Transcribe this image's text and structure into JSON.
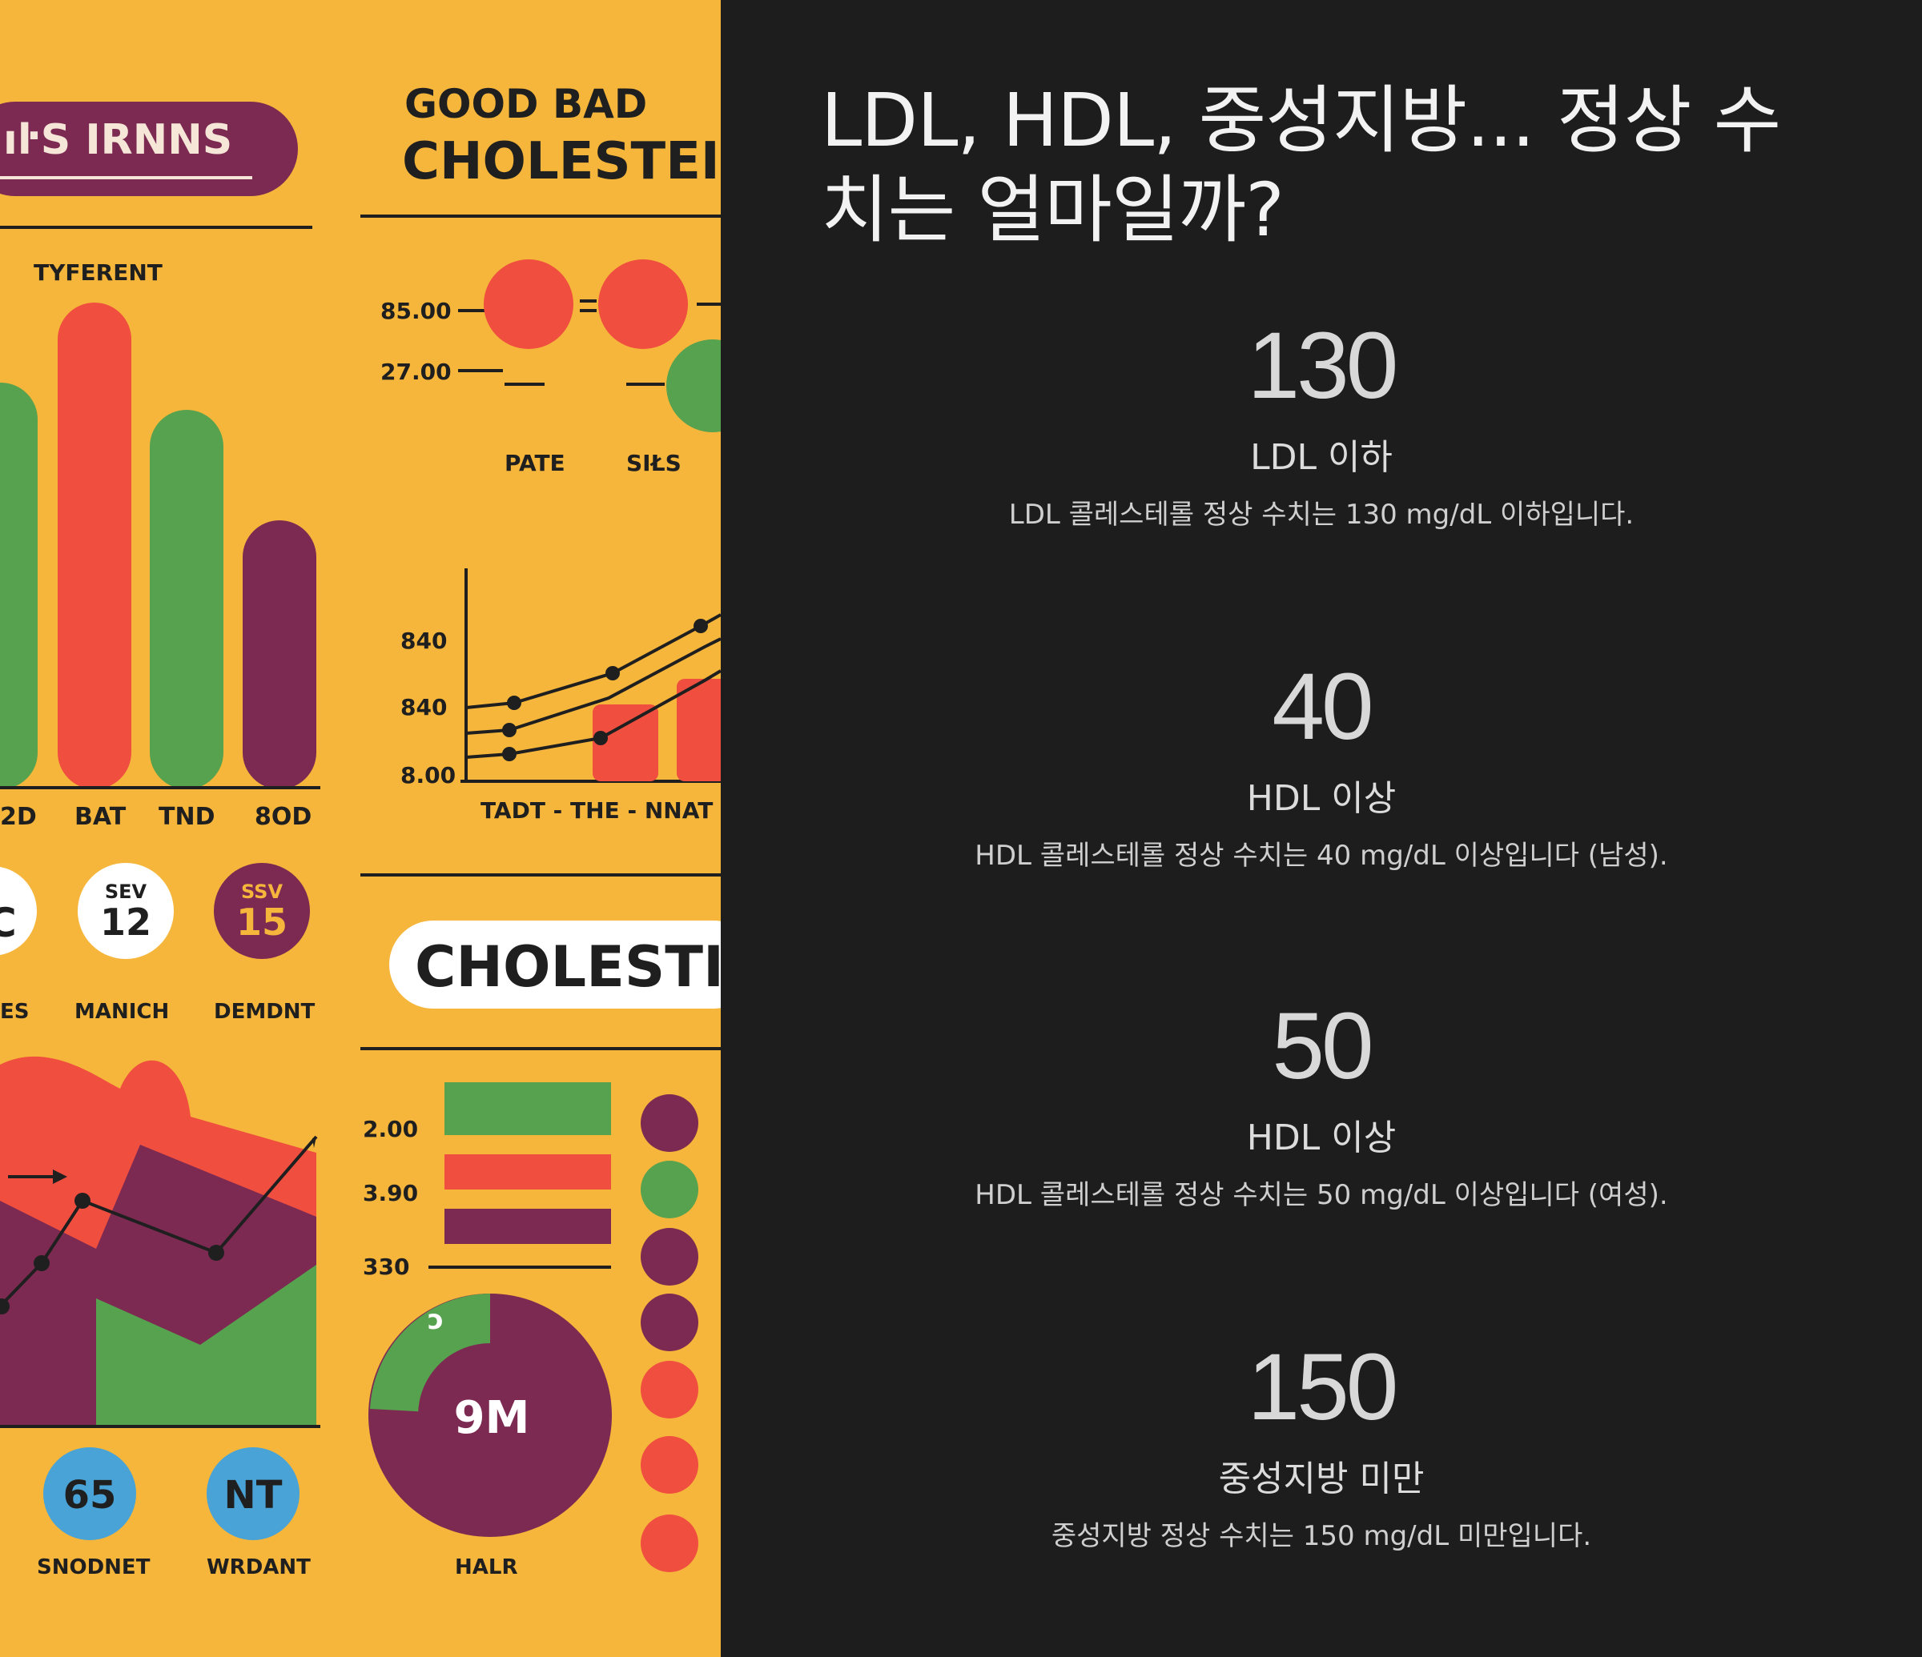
{
  "illustration": {
    "texts": {
      "banner": "ıŀS IRNNS",
      "heading1": "GOOD BAD",
      "heading2": "CHOLESTEI",
      "bar_heading": "TYFERENT",
      "bar_labels": [
        "2D",
        "BAT",
        "TND",
        "8OD"
      ],
      "dot_ticks": [
        "85.00",
        "27.00"
      ],
      "dot_labels": [
        "PATE",
        "SIŁS"
      ],
      "line_ticks": [
        "840",
        "840",
        "8.00"
      ],
      "line_xlabel": "TADT - THE - NNAT -",
      "circle1_small": "SEV",
      "circle1_big": "12",
      "circle2_small": "SSV",
      "circle2_big": "15",
      "circle0_big": "C",
      "circle_labels": [
        "ES",
        "MANICH",
        "DEMDNT"
      ],
      "pill": "CHOLESTI",
      "hbar_ticks": [
        "2.00",
        "3.90",
        "330"
      ],
      "pie_label": "9M",
      "pie_small": "ɔ",
      "bottom_circle1": "65",
      "bottom_circle2": "NT",
      "bottom_labels": [
        "SNODNET",
        "WRDANT",
        "HALR"
      ]
    },
    "colors": {
      "bg": "#f5b63b",
      "red": "#f04e3f",
      "green": "#57a24e",
      "purple": "#7c2a52",
      "blue": "#4aa3d6",
      "dark": "#1f1f1f"
    }
  },
  "title": "LDL, HDL, 중성지방... 정상 수치는 얼마일까?",
  "stats": [
    {
      "value": "130",
      "label": "LDL 이하",
      "desc": "LDL 콜레스테롤 정상 수치는 130 mg/dL 이하입니다."
    },
    {
      "value": "40",
      "label": "HDL 이상",
      "desc": "HDL 콜레스테롤 정상 수치는 40 mg/dL 이상입니다 (남성)."
    },
    {
      "value": "50",
      "label": "HDL 이상",
      "desc": "HDL 콜레스테롤 정상 수치는 50 mg/dL 이상입니다 (여성)."
    },
    {
      "value": "150",
      "label": "중성지방 미만",
      "desc": "중성지방 정상 수치는 150 mg/dL 미만입니다."
    }
  ]
}
